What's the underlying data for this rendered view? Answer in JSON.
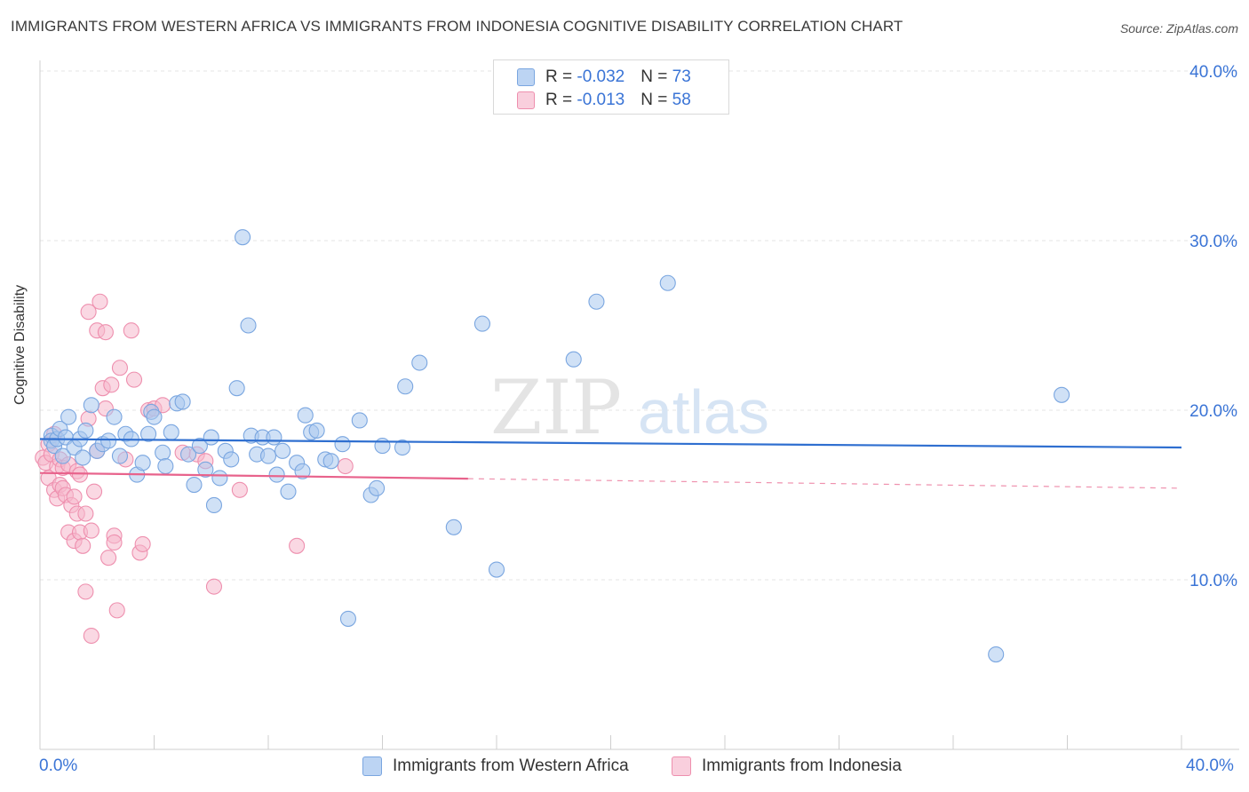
{
  "title": "IMMIGRANTS FROM WESTERN AFRICA VS IMMIGRANTS FROM INDONESIA COGNITIVE DISABILITY CORRELATION CHART",
  "source": "Source: ZipAtlas.com",
  "watermark": {
    "zip": "ZIP",
    "atlas": "atlas"
  },
  "legend": {
    "rows": [
      {
        "r_label": "R = ",
        "r_value": "-0.032",
        "n_label": "N = ",
        "n_value": "73"
      },
      {
        "r_label": "R = ",
        "r_value": "-0.013",
        "n_label": "N = ",
        "n_value": "58"
      }
    ]
  },
  "colors": {
    "blue_fill": "#a9c8ef",
    "blue_stroke": "#7aa6e0",
    "blue_line": "#2f6fd0",
    "pink_fill": "#f5b8cc",
    "pink_stroke": "#ee8fae",
    "pink_line": "#e8638c",
    "axis_text": "#3a74d6",
    "grid": "#e5e5e5"
  },
  "chart_data": {
    "type": "scatter",
    "title": "IMMIGRANTS FROM WESTERN AFRICA VS IMMIGRANTS FROM INDONESIA COGNITIVE DISABILITY CORRELATION CHART",
    "xlabel": "",
    "ylabel": "Cognitive Disability",
    "xlim": [
      0,
      40
    ],
    "ylim": [
      0,
      41
    ],
    "x_tick_labels": [
      "0.0%",
      "40.0%"
    ],
    "y_ticks": [
      10,
      20,
      30,
      40
    ],
    "y_tick_labels": [
      "10.0%",
      "20.0%",
      "30.0%",
      "40.0%"
    ],
    "grid": true,
    "legend_position": "top-center",
    "series": [
      {
        "name": "Immigrants from Western Africa",
        "color": "#a9c8ef",
        "trend": {
          "x": [
            0,
            40
          ],
          "y": [
            18.3,
            17.8
          ]
        },
        "points": [
          [
            0.4,
            18.5
          ],
          [
            0.4,
            18.2
          ],
          [
            0.5,
            17.9
          ],
          [
            0.6,
            18.3
          ],
          [
            0.7,
            18.9
          ],
          [
            0.8,
            17.3
          ],
          [
            0.9,
            18.4
          ],
          [
            1.0,
            19.6
          ],
          [
            1.2,
            17.8
          ],
          [
            1.4,
            18.3
          ],
          [
            1.5,
            17.2
          ],
          [
            1.6,
            18.8
          ],
          [
            1.8,
            20.3
          ],
          [
            2.0,
            17.6
          ],
          [
            2.2,
            18.0
          ],
          [
            2.4,
            18.2
          ],
          [
            2.6,
            19.6
          ],
          [
            2.8,
            17.3
          ],
          [
            3.0,
            18.6
          ],
          [
            3.2,
            18.3
          ],
          [
            3.4,
            16.2
          ],
          [
            3.6,
            16.9
          ],
          [
            3.8,
            18.6
          ],
          [
            3.9,
            19.9
          ],
          [
            4.0,
            19.6
          ],
          [
            4.3,
            17.5
          ],
          [
            4.4,
            16.7
          ],
          [
            4.6,
            18.7
          ],
          [
            4.8,
            20.4
          ],
          [
            5.0,
            20.5
          ],
          [
            5.2,
            17.4
          ],
          [
            5.4,
            15.6
          ],
          [
            5.6,
            17.9
          ],
          [
            5.8,
            16.5
          ],
          [
            6.0,
            18.4
          ],
          [
            6.1,
            14.4
          ],
          [
            6.3,
            16.0
          ],
          [
            6.5,
            17.6
          ],
          [
            6.7,
            17.1
          ],
          [
            6.9,
            21.3
          ],
          [
            7.1,
            30.2
          ],
          [
            7.3,
            25.0
          ],
          [
            7.4,
            18.5
          ],
          [
            7.6,
            17.4
          ],
          [
            7.8,
            18.4
          ],
          [
            8.0,
            17.3
          ],
          [
            8.2,
            18.4
          ],
          [
            8.3,
            16.2
          ],
          [
            8.5,
            17.6
          ],
          [
            8.7,
            15.2
          ],
          [
            9.0,
            16.9
          ],
          [
            9.2,
            16.4
          ],
          [
            9.3,
            19.7
          ],
          [
            9.5,
            18.7
          ],
          [
            9.7,
            18.8
          ],
          [
            10.0,
            17.1
          ],
          [
            10.2,
            17.0
          ],
          [
            10.6,
            18.0
          ],
          [
            10.8,
            7.7
          ],
          [
            11.2,
            19.4
          ],
          [
            11.6,
            15.0
          ],
          [
            11.8,
            15.4
          ],
          [
            12.0,
            17.9
          ],
          [
            12.7,
            17.8
          ],
          [
            12.8,
            21.4
          ],
          [
            13.3,
            22.8
          ],
          [
            14.5,
            13.1
          ],
          [
            15.5,
            25.1
          ],
          [
            16.0,
            10.6
          ],
          [
            18.7,
            23.0
          ],
          [
            19.5,
            26.4
          ],
          [
            22.0,
            27.5
          ],
          [
            33.5,
            5.6
          ],
          [
            35.8,
            20.9
          ]
        ]
      },
      {
        "name": "Immigrants from Indonesia",
        "color": "#f5b8cc",
        "trend": {
          "x": [
            0,
            40
          ],
          "y": [
            16.3,
            15.4
          ],
          "solid_until": 15.0
        },
        "points": [
          [
            0.1,
            17.2
          ],
          [
            0.2,
            16.9
          ],
          [
            0.3,
            18.0
          ],
          [
            0.3,
            16.0
          ],
          [
            0.4,
            17.4
          ],
          [
            0.5,
            18.6
          ],
          [
            0.5,
            15.3
          ],
          [
            0.6,
            16.7
          ],
          [
            0.6,
            14.8
          ],
          [
            0.7,
            17.1
          ],
          [
            0.7,
            15.6
          ],
          [
            0.8,
            16.6
          ],
          [
            0.8,
            15.4
          ],
          [
            0.9,
            15.0
          ],
          [
            1.0,
            16.8
          ],
          [
            1.0,
            12.8
          ],
          [
            1.1,
            14.4
          ],
          [
            1.2,
            14.9
          ],
          [
            1.2,
            12.3
          ],
          [
            1.3,
            16.4
          ],
          [
            1.3,
            13.9
          ],
          [
            1.4,
            16.2
          ],
          [
            1.4,
            12.8
          ],
          [
            1.5,
            12.0
          ],
          [
            1.6,
            13.9
          ],
          [
            1.6,
            9.3
          ],
          [
            1.7,
            25.8
          ],
          [
            1.7,
            19.5
          ],
          [
            1.8,
            6.7
          ],
          [
            1.8,
            12.9
          ],
          [
            1.9,
            15.2
          ],
          [
            2.0,
            24.7
          ],
          [
            2.0,
            17.6
          ],
          [
            2.1,
            26.4
          ],
          [
            2.2,
            21.3
          ],
          [
            2.3,
            20.1
          ],
          [
            2.3,
            24.6
          ],
          [
            2.4,
            11.3
          ],
          [
            2.5,
            21.5
          ],
          [
            2.6,
            12.6
          ],
          [
            2.6,
            12.2
          ],
          [
            2.7,
            8.2
          ],
          [
            2.8,
            22.5
          ],
          [
            3.0,
            17.1
          ],
          [
            3.2,
            24.7
          ],
          [
            3.3,
            21.8
          ],
          [
            3.5,
            11.6
          ],
          [
            3.6,
            12.1
          ],
          [
            3.8,
            20.0
          ],
          [
            4.0,
            20.1
          ],
          [
            4.3,
            20.3
          ],
          [
            5.0,
            17.5
          ],
          [
            5.5,
            17.4
          ],
          [
            5.8,
            17.0
          ],
          [
            6.1,
            9.6
          ],
          [
            7.0,
            15.3
          ],
          [
            9.0,
            12.0
          ],
          [
            10.7,
            16.7
          ]
        ]
      }
    ]
  },
  "bottom_legend": {
    "items": [
      "Immigrants from Western Africa",
      "Immigrants from Indonesia"
    ]
  }
}
